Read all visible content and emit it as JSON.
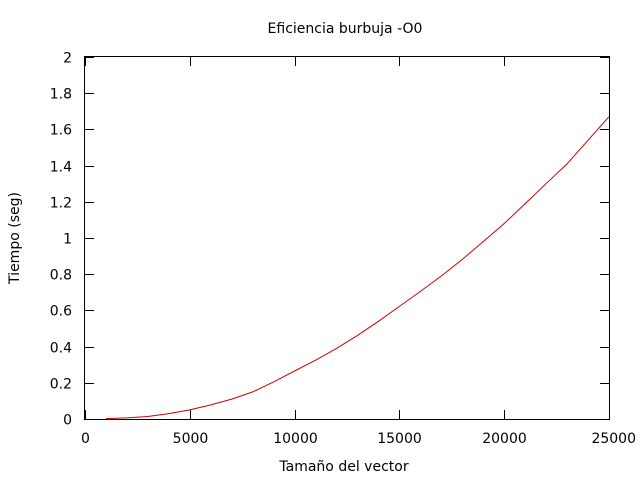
{
  "chart_data": {
    "type": "line",
    "title": "Eficiencia burbuja -O0",
    "xlabel": "Tamaño del vector",
    "ylabel": "Tiempo (seg)",
    "xlim": [
      0,
      25000
    ],
    "ylim": [
      0,
      2
    ],
    "xticks": [
      0,
      5000,
      10000,
      15000,
      20000,
      25000
    ],
    "yticks": [
      0,
      0.2,
      0.4,
      0.6,
      0.8,
      1,
      1.2,
      1.4,
      1.6,
      1.8,
      2
    ],
    "xtick_labels": [
      "0",
      "5000",
      "10000",
      "15000",
      "20000",
      "25000"
    ],
    "ytick_labels": [
      "0",
      "0.2",
      "0.4",
      "0.6",
      "0.8",
      "1",
      "1.2",
      "1.4",
      "1.6",
      "1.8",
      "2"
    ],
    "grid": false,
    "series": [
      {
        "name": "burbuja -O0",
        "color": "#cc0000",
        "x": [
          1000,
          2000,
          3000,
          4000,
          5000,
          6000,
          7000,
          8000,
          9000,
          10000,
          11000,
          12000,
          13000,
          14000,
          15000,
          16000,
          17000,
          18000,
          19000,
          20000,
          21000,
          22000,
          23000,
          24000,
          25000
        ],
        "y": [
          0.002,
          0.006,
          0.014,
          0.03,
          0.05,
          0.078,
          0.11,
          0.15,
          0.205,
          0.265,
          0.325,
          0.39,
          0.462,
          0.54,
          0.622,
          0.705,
          0.79,
          0.882,
          0.98,
          1.08,
          1.19,
          1.3,
          1.41,
          1.54,
          1.67
        ]
      }
    ]
  }
}
